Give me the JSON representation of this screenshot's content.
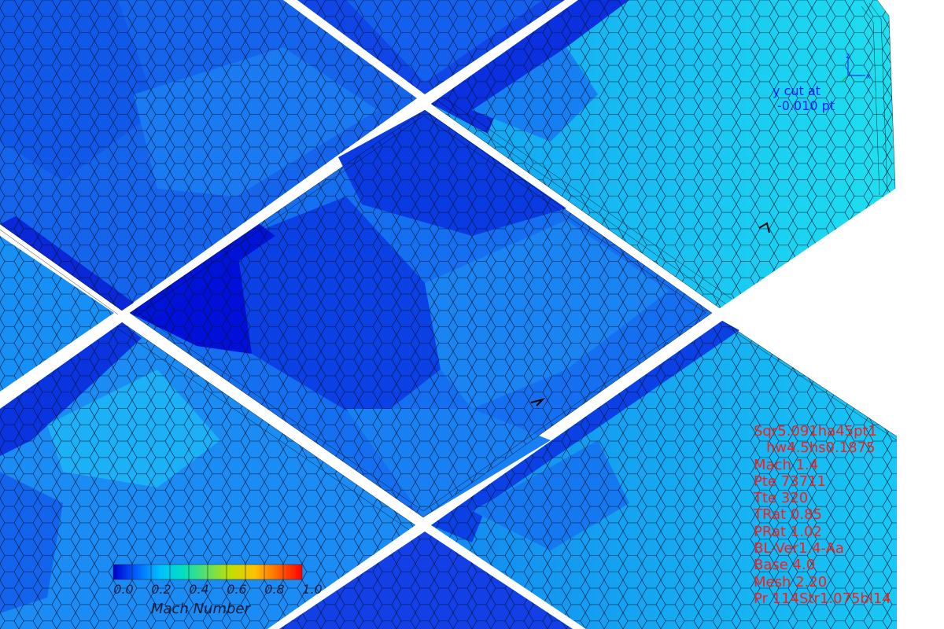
{
  "cut_label": {
    "line1": "y cut at",
    "line2": "-0.010 pt"
  },
  "axis_triad": {
    "z_label": "z",
    "x_label": "x"
  },
  "parameters": [
    "Sqr5.091ha45pt1",
    "hw4.5hs0.1875",
    "Mach 1.4",
    "Pte 73711",
    "Tte 320",
    "TRat 0.85",
    "PRat 1.02",
    "BL-Ver1.4-Aa",
    "Base 4.0",
    "Mesh 2.20",
    "Pr 114Str1.075bl14"
  ],
  "colorbar": {
    "title": "Mach Number",
    "ticks": [
      "0.0",
      "0.2",
      "0.4",
      "0.6",
      "0.8",
      "1.0"
    ],
    "colormap": [
      "#0000d0",
      "#0060ff",
      "#00c0ff",
      "#00e0c0",
      "#60e060",
      "#c0e000",
      "#ffc000",
      "#ff6000",
      "#ff0000"
    ]
  },
  "colors": {
    "mesh_lines": "#000000",
    "gap": "#ffffff",
    "deep_blue": "#0a1ee0",
    "mid_blue": "#1a72f0",
    "light_blue": "#12a8f6",
    "cyan": "#18d8f4"
  }
}
